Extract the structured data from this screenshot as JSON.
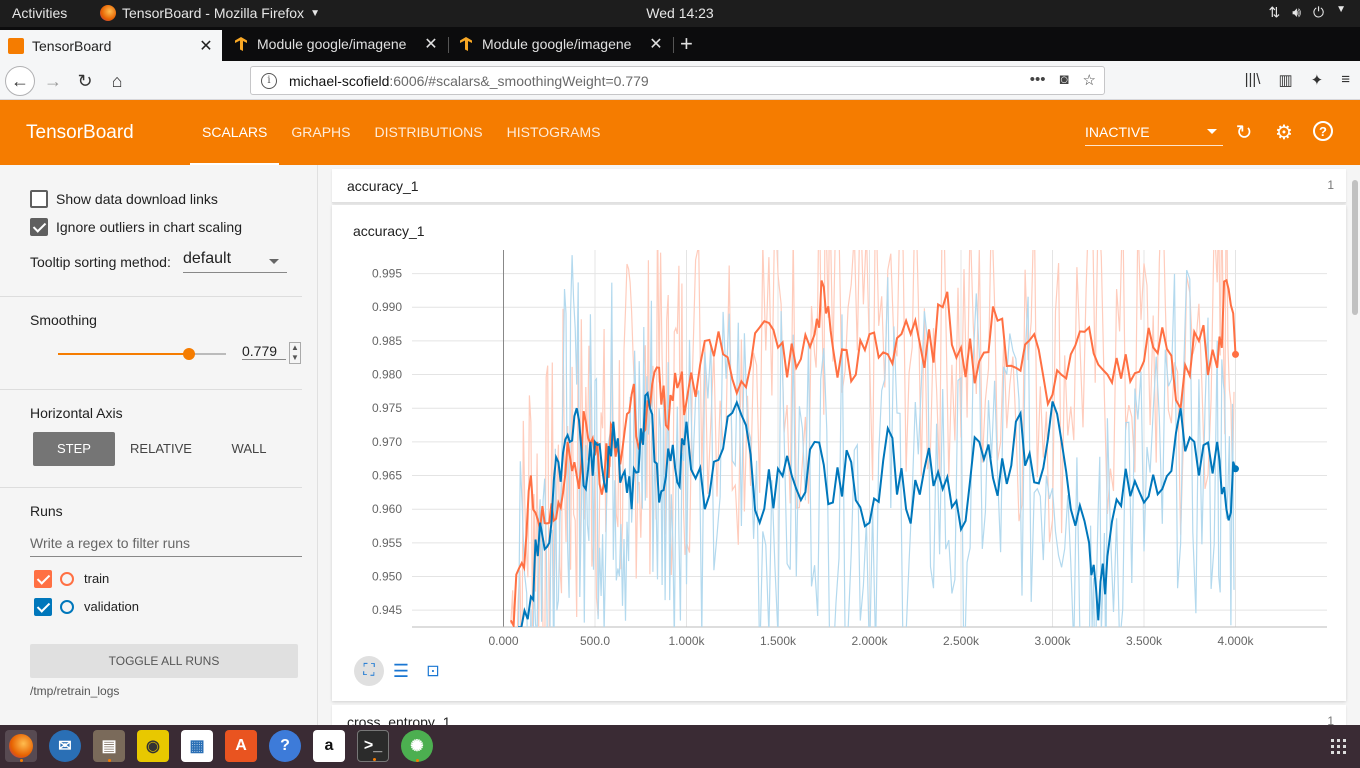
{
  "system": {
    "activities": "Activities",
    "app_title": "TensorBoard - Mozilla Firefox",
    "clock": "Wed 14:23"
  },
  "browser": {
    "tabs": [
      {
        "title": "TensorBoard",
        "active": true
      },
      {
        "title": "Module google/imagene",
        "active": false
      },
      {
        "title": "Module google/imagene",
        "active": false
      }
    ],
    "url_host": "michael-scofield",
    "url_rest": ":6006/#scalars&_smoothingWeight=0.779"
  },
  "tensorboard": {
    "title": "TensorBoard",
    "tabs": [
      "SCALARS",
      "GRAPHS",
      "DISTRIBUTIONS",
      "HISTOGRAMS"
    ],
    "run_selector": "INACTIVE"
  },
  "sidebar": {
    "show_download": "Show data download links",
    "show_download_checked": false,
    "ignore_outliers": "Ignore outliers in chart scaling",
    "ignore_outliers_checked": true,
    "tooltip_label": "Tooltip sorting method:",
    "tooltip_value": "default",
    "smoothing_label": "Smoothing",
    "smoothing_value": "0.779",
    "smoothing_fraction": 0.779,
    "horizontal_axis_label": "Horizontal Axis",
    "axis_options": [
      "STEP",
      "RELATIVE",
      "WALL"
    ],
    "axis_selected": "STEP",
    "runs_label": "Runs",
    "runs_filter_placeholder": "Write a regex to filter runs",
    "runs": [
      {
        "name": "train",
        "color": "#ff7043",
        "checked": true
      },
      {
        "name": "validation",
        "color": "#0077bb",
        "checked": true
      }
    ],
    "toggle_all": "TOGGLE ALL RUNS",
    "logdir": "/tmp/retrain_logs"
  },
  "main": {
    "group_name": "accuracy_1",
    "group_count": "1",
    "next_group_name": "cross_entropy_1",
    "next_group_count": "1"
  },
  "chart_data": {
    "type": "line",
    "title": "accuracy_1",
    "xlabel": "",
    "ylabel": "",
    "x_ticks": [
      "0.000",
      "500.0",
      "1.000k",
      "1.500k",
      "2.000k",
      "2.500k",
      "3.000k",
      "3.500k",
      "4.000k"
    ],
    "y_ticks": [
      "0.945",
      "0.950",
      "0.955",
      "0.960",
      "0.965",
      "0.970",
      "0.975",
      "0.980",
      "0.985",
      "0.990",
      "0.995"
    ],
    "xlim": [
      -500,
      4500
    ],
    "ylim": [
      0.9425,
      0.9985
    ],
    "grid": true,
    "series": [
      {
        "name": "train",
        "color": "#ff7043",
        "raw_color": "#ffccbc",
        "x": [
          40,
          100,
          150,
          200,
          250,
          300,
          350,
          400,
          450,
          500,
          550,
          600,
          650,
          700,
          750,
          800,
          850,
          900,
          950,
          1000,
          1100,
          1200,
          1300,
          1400,
          1500,
          1600,
          1700,
          1750,
          1800,
          1900,
          2000,
          2100,
          2200,
          2300,
          2400,
          2500,
          2600,
          2700,
          2800,
          2900,
          3000,
          3100,
          3200,
          3300,
          3400,
          3500,
          3600,
          3700,
          3800,
          3900,
          3950,
          4000
        ],
        "y": [
          0.9435,
          0.952,
          0.965,
          0.957,
          0.958,
          0.961,
          0.97,
          0.965,
          0.973,
          0.968,
          0.964,
          0.972,
          0.969,
          0.977,
          0.97,
          0.975,
          0.981,
          0.972,
          0.978,
          0.976,
          0.985,
          0.983,
          0.979,
          0.987,
          0.984,
          0.981,
          0.986,
          0.993,
          0.984,
          0.979,
          0.986,
          0.983,
          0.988,
          0.981,
          0.99,
          0.984,
          0.982,
          0.988,
          0.981,
          0.986,
          0.977,
          0.983,
          0.987,
          0.98,
          0.983,
          0.982,
          0.987,
          0.975,
          0.985,
          0.981,
          0.994,
          0.983
        ]
      },
      {
        "name": "validation",
        "color": "#0077bb",
        "raw_color": "#b3d9ee",
        "x": [
          80,
          150,
          200,
          250,
          300,
          350,
          400,
          450,
          500,
          550,
          600,
          650,
          700,
          750,
          800,
          850,
          900,
          950,
          1000,
          1100,
          1200,
          1300,
          1400,
          1500,
          1600,
          1700,
          1800,
          1900,
          2000,
          2100,
          2200,
          2300,
          2400,
          2500,
          2600,
          2700,
          2800,
          2900,
          3000,
          3100,
          3200,
          3250,
          3300,
          3400,
          3500,
          3600,
          3700,
          3800,
          3900,
          3950,
          4000
        ],
        "y": [
          0.9425,
          0.947,
          0.958,
          0.955,
          0.967,
          0.971,
          0.975,
          0.963,
          0.97,
          0.964,
          0.973,
          0.965,
          0.96,
          0.972,
          0.975,
          0.961,
          0.969,
          0.964,
          0.973,
          0.96,
          0.969,
          0.974,
          0.958,
          0.966,
          0.963,
          0.97,
          0.961,
          0.967,
          0.958,
          0.972,
          0.96,
          0.966,
          0.963,
          0.957,
          0.97,
          0.962,
          0.973,
          0.964,
          0.976,
          0.96,
          0.955,
          0.9435,
          0.953,
          0.966,
          0.961,
          0.963,
          0.975,
          0.965,
          0.97,
          0.96,
          0.966
        ]
      }
    ]
  },
  "colors": {
    "accent": "#f57c00",
    "taskbar": "#3a2b34"
  }
}
